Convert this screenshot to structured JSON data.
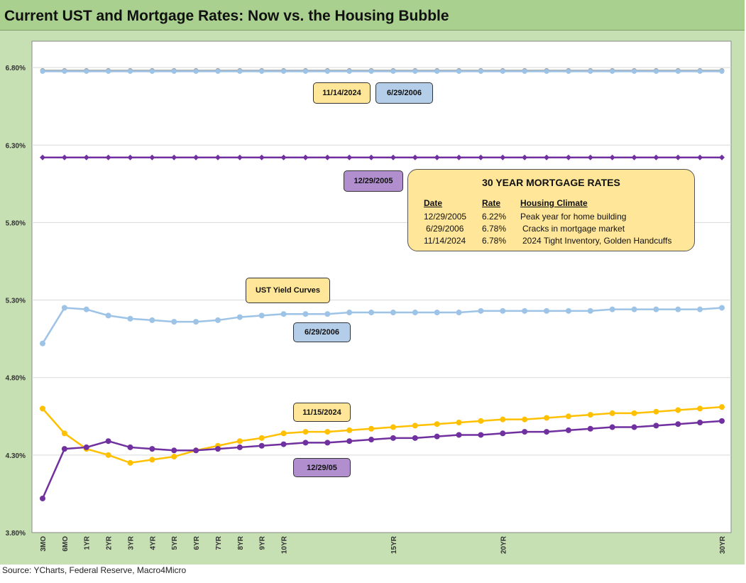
{
  "title": "Current UST and Mortgage Rates: Now vs. the Housing Bubble",
  "source": "Source: YCharts, Federal Reserve, Macro4Micro",
  "annotations": {
    "top_2024": "11/14/2024",
    "top_2006": "6/29/2006",
    "mid_2005": "12/29/2005",
    "ust_title": "UST  Yield Curves",
    "curve_2006": "6/29/2006",
    "curve_2024": "11/15/2024",
    "curve_2005": "12/29/05"
  },
  "mortgage_table": {
    "title": "30 YEAR MORTGAGE RATES",
    "headers": [
      "Date",
      "Rate",
      "Housing Climate"
    ],
    "rows": [
      [
        "12/29/2005",
        "6.22%",
        "Peak year for home building"
      ],
      [
        "6/29/2006",
        "6.78%",
        "Cracks in mortgage market"
      ],
      [
        "11/14/2024",
        "6.78%",
        "2024 Tight Inventory, Golden Handcuffs"
      ]
    ]
  },
  "chart_data": {
    "type": "line",
    "title": "Current UST and Mortgage Rates: Now vs. the Housing Bubble",
    "ylim": [
      3.8,
      6.97
    ],
    "yticks": [
      "3.80%",
      "4.30%",
      "4.80%",
      "5.30%",
      "5.80%",
      "6.30%",
      "6.80%"
    ],
    "ytick_values": [
      3.8,
      4.3,
      4.8,
      5.3,
      5.8,
      6.3,
      6.8
    ],
    "x_tick_labels": [
      "3MO",
      "6MO",
      "1YR",
      "2YR",
      "3YR",
      "4YR",
      "5YR",
      "6YR",
      "7YR",
      "8YR",
      "9YR",
      "10YR",
      "",
      "",
      "",
      "",
      "15YR",
      "",
      "",
      "",
      "",
      "20YR",
      "",
      "",
      "",
      "",
      "",
      "",
      "",
      "",
      "",
      "30YR"
    ],
    "grid": true,
    "series": [
      {
        "name": "Mortgage 11/14/2024",
        "color": "#a0a0a0",
        "values": [
          6.78,
          6.78,
          6.78,
          6.78,
          6.78,
          6.78,
          6.78,
          6.78,
          6.78,
          6.78,
          6.78,
          6.78,
          6.78,
          6.78,
          6.78,
          6.78,
          6.78,
          6.78,
          6.78,
          6.78,
          6.78,
          6.78,
          6.78,
          6.78,
          6.78,
          6.78,
          6.78,
          6.78,
          6.78,
          6.78,
          6.78,
          6.78
        ]
      },
      {
        "name": "Mortgage 6/29/2006",
        "color": "#9dc3e6",
        "values": [
          6.78,
          6.78,
          6.78,
          6.78,
          6.78,
          6.78,
          6.78,
          6.78,
          6.78,
          6.78,
          6.78,
          6.78,
          6.78,
          6.78,
          6.78,
          6.78,
          6.78,
          6.78,
          6.78,
          6.78,
          6.78,
          6.78,
          6.78,
          6.78,
          6.78,
          6.78,
          6.78,
          6.78,
          6.78,
          6.78,
          6.78,
          6.78
        ]
      },
      {
        "name": "Mortgage 12/29/2005",
        "color": "#7030a0",
        "values": [
          6.22,
          6.22,
          6.22,
          6.22,
          6.22,
          6.22,
          6.22,
          6.22,
          6.22,
          6.22,
          6.22,
          6.22,
          6.22,
          6.22,
          6.22,
          6.22,
          6.22,
          6.22,
          6.22,
          6.22,
          6.22,
          6.22,
          6.22,
          6.22,
          6.22,
          6.22,
          6.22,
          6.22,
          6.22,
          6.22,
          6.22,
          6.22
        ]
      },
      {
        "name": "UST 6/29/2006",
        "color": "#9dc3e6",
        "values": [
          5.02,
          5.25,
          5.24,
          5.2,
          5.18,
          5.17,
          5.16,
          5.16,
          5.17,
          5.19,
          5.2,
          5.21,
          5.21,
          5.21,
          5.22,
          5.22,
          5.22,
          5.22,
          5.22,
          5.22,
          5.23,
          5.23,
          5.23,
          5.23,
          5.23,
          5.23,
          5.24,
          5.24,
          5.24,
          5.24,
          5.24,
          5.25
        ]
      },
      {
        "name": "UST 11/15/2024",
        "color": "#ffc000",
        "values": [
          4.6,
          4.44,
          4.34,
          4.3,
          4.25,
          4.27,
          4.29,
          4.33,
          4.36,
          4.39,
          4.41,
          4.44,
          4.45,
          4.45,
          4.46,
          4.47,
          4.48,
          4.49,
          4.5,
          4.51,
          4.52,
          4.53,
          4.53,
          4.54,
          4.55,
          4.56,
          4.57,
          4.57,
          4.58,
          4.59,
          4.6,
          4.61
        ]
      },
      {
        "name": "UST 12/29/2005",
        "color": "#7030a0",
        "values": [
          4.02,
          4.34,
          4.35,
          4.39,
          4.35,
          4.34,
          4.33,
          4.33,
          4.34,
          4.35,
          4.36,
          4.37,
          4.38,
          4.38,
          4.39,
          4.4,
          4.41,
          4.41,
          4.42,
          4.43,
          4.43,
          4.44,
          4.45,
          4.45,
          4.46,
          4.47,
          4.48,
          4.48,
          4.49,
          4.5,
          4.51,
          4.52
        ]
      }
    ]
  }
}
